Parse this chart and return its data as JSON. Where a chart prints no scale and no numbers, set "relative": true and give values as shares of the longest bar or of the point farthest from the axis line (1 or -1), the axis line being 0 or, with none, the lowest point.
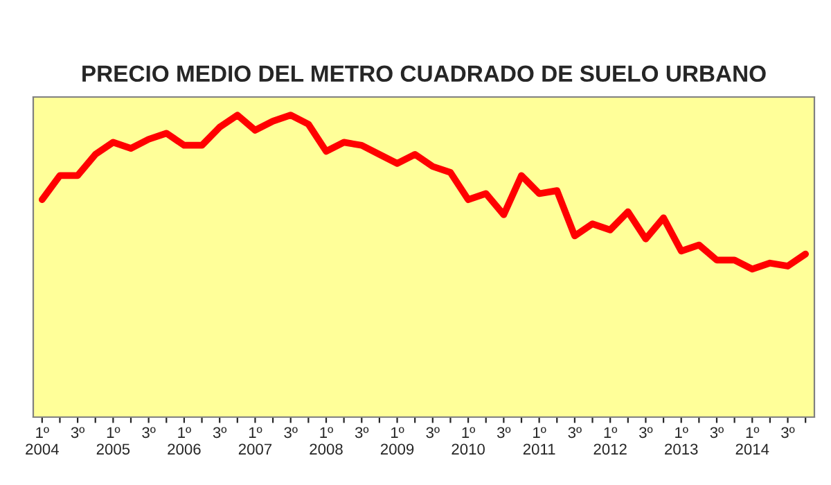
{
  "chart_data": {
    "type": "line",
    "title": "PRECIO MEDIO DEL METRO CUADRADO DE SUELO URBANO",
    "relative": true,
    "grid": false,
    "marker": "none",
    "line_style": "solid",
    "categories": [
      "1º\n2004",
      null,
      "3º",
      null,
      "1º\n2005",
      null,
      "3º",
      null,
      "1º\n2006",
      null,
      "3º",
      null,
      "1º\n2007",
      null,
      "3º",
      null,
      "1º\n2008",
      null,
      "3º",
      null,
      "1º\n2009",
      null,
      "3º",
      null,
      "1º\n2010",
      null,
      "3º",
      null,
      "1º\n2011",
      null,
      "3º",
      null,
      "1º\n2012",
      null,
      "3º",
      null,
      "1º\n2013",
      null,
      "3º",
      null,
      "1º\n2014",
      null,
      "3º",
      null
    ],
    "series": [
      {
        "color": "#ff0000",
        "values": [
          0.72,
          0.8,
          0.8,
          0.87,
          0.91,
          0.89,
          0.92,
          0.94,
          0.9,
          0.9,
          0.96,
          1.0,
          0.95,
          0.98,
          1.0,
          0.97,
          0.88,
          0.91,
          0.9,
          0.87,
          0.84,
          0.87,
          0.83,
          0.81,
          0.72,
          0.74,
          0.67,
          0.8,
          0.74,
          0.75,
          0.6,
          0.64,
          0.62,
          0.68,
          0.59,
          0.66,
          0.55,
          0.57,
          0.52,
          0.52,
          0.49,
          0.51,
          0.5,
          0.54
        ]
      }
    ]
  }
}
